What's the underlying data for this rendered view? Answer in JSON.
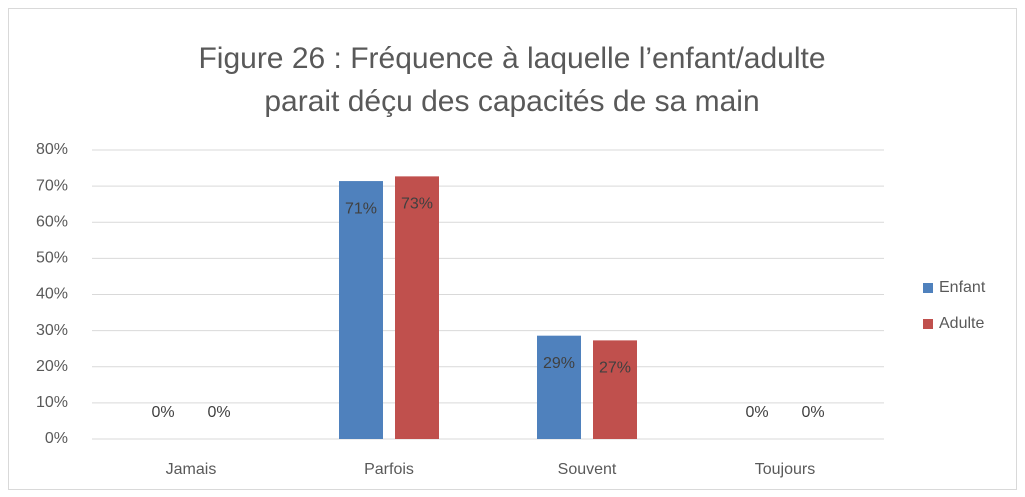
{
  "chart_data": {
    "type": "bar",
    "title": [
      "Figure 26 : Fréquence à laquelle l’enfant/adulte",
      "parait déçu des capacités de sa main"
    ],
    "categories": [
      "Jamais",
      "Parfois",
      "Souvent",
      "Toujours"
    ],
    "series": [
      {
        "name": "Enfant",
        "color": "#4f81bd",
        "values": [
          0,
          71.4,
          28.6,
          0
        ],
        "value_labels": [
          "0%",
          "71%",
          "29%",
          "0%"
        ]
      },
      {
        "name": "Adulte",
        "color": "#c0504d",
        "values": [
          0,
          72.7,
          27.3,
          0
        ],
        "value_labels": [
          "0%",
          "73%",
          "27%",
          "0%"
        ]
      }
    ],
    "ylim": [
      0,
      80
    ],
    "yticks": [
      {
        "value": 0,
        "label": "0%"
      },
      {
        "value": 10,
        "label": "10%"
      },
      {
        "value": 20,
        "label": "20%"
      },
      {
        "value": 30,
        "label": "30%"
      },
      {
        "value": 40,
        "label": "40%"
      },
      {
        "value": 50,
        "label": "50%"
      },
      {
        "value": 60,
        "label": "60%"
      },
      {
        "value": 70,
        "label": "70%"
      },
      {
        "value": 80,
        "label": "80%"
      }
    ],
    "grid": true,
    "legend": "right"
  }
}
